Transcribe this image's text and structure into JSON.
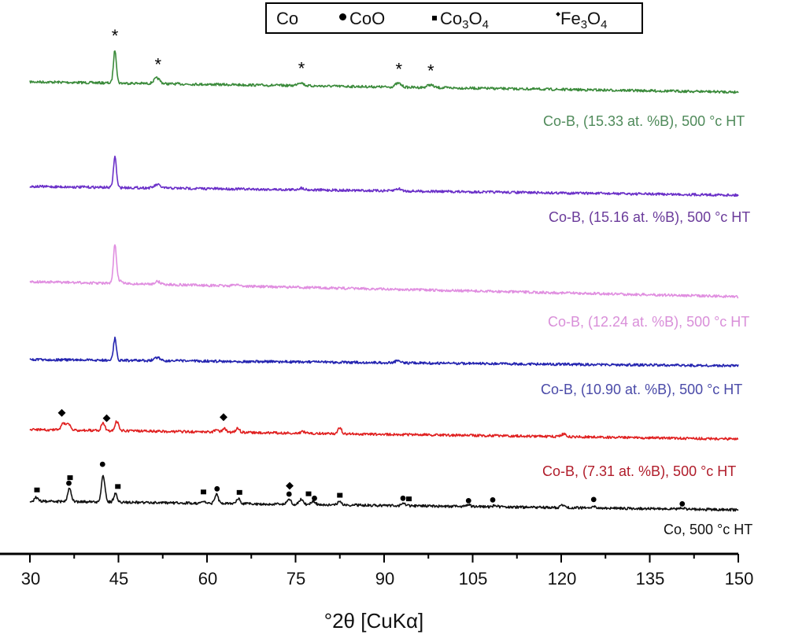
{
  "chart_data": {
    "type": "line",
    "title": "",
    "xlabel": "°2θ [CuKα]",
    "ylabel": "",
    "xlim": [
      30,
      150
    ],
    "xticks": [
      "30",
      "45",
      "60",
      "75",
      "90",
      "105",
      "120",
      "135",
      "150"
    ],
    "grid": false,
    "legend": {
      "placement": "top-center",
      "entries": [
        {
          "label": "Co",
          "sub": "",
          "label_tail": "",
          "sub2": "",
          "marker": "asterisk"
        },
        {
          "label": "CoO",
          "sub": "",
          "label_tail": "",
          "sub2": "",
          "marker": "circle"
        },
        {
          "label": "Co",
          "sub": "3",
          "label_tail": "O",
          "sub2": "4",
          "marker": "square"
        },
        {
          "label": "Fe",
          "sub": "3",
          "label_tail": "O",
          "sub2": "4",
          "marker": "diamond"
        }
      ]
    },
    "series": [
      {
        "name": "Co-B, (15.33 at. %B), 500 °c HT",
        "color": "#3a8a3a",
        "label_color": "#4f8a5a",
        "offset_rank": 5,
        "baseline": [
          0,
          0.13
        ],
        "peaks": [
          [
            44.4,
            6.0,
            0.25
          ],
          [
            51.5,
            1.0,
            0.5
          ],
          [
            75.8,
            0.6,
            0.5
          ],
          [
            92.4,
            0.7,
            0.5
          ],
          [
            97.8,
            0.5,
            0.5
          ]
        ],
        "markers": [
          {
            "x": 44.4,
            "symbol": "asterisk"
          },
          {
            "x": 51.7,
            "symbol": "asterisk"
          },
          {
            "x": 76.0,
            "symbol": "asterisk"
          },
          {
            "x": 92.5,
            "symbol": "asterisk"
          },
          {
            "x": 97.9,
            "symbol": "asterisk"
          }
        ]
      },
      {
        "name": "Co-B, (15.16 at. %B), 500 °c HT",
        "color": "#6a2fc8",
        "label_color": "#6a3a9a",
        "offset_rank": 4,
        "baseline": [
          0,
          0.11
        ],
        "peaks": [
          [
            44.4,
            5.6,
            0.25
          ],
          [
            51.6,
            0.6,
            0.5
          ],
          [
            76.0,
            0.3,
            0.5
          ],
          [
            92.4,
            0.4,
            0.5
          ]
        ],
        "markers": []
      },
      {
        "name": "Co-B, (12.24 at. %B), 500 °c HT",
        "color": "#e08ee0",
        "label_color": "#d98fd9",
        "offset_rank": 3,
        "baseline": [
          0,
          0.19
        ],
        "peaks": [
          [
            44.4,
            7.0,
            0.25
          ],
          [
            45.1,
            0.6,
            0.4
          ],
          [
            51.6,
            0.5,
            0.5
          ],
          [
            65.0,
            0.3,
            0.5
          ]
        ],
        "markers": []
      },
      {
        "name": "Co-B, (10.90 at. %B), 500 °c HT",
        "color": "#2424b0",
        "label_color": "#4a4aa8",
        "offset_rank": 2,
        "baseline": [
          0,
          0.08
        ],
        "peaks": [
          [
            44.4,
            4.0,
            0.25
          ],
          [
            51.6,
            0.6,
            0.5
          ],
          [
            92.4,
            0.4,
            0.5
          ]
        ],
        "markers": []
      },
      {
        "name": "Co-B, (7.31 at. %B), 500 °c HT",
        "color": "#e02020",
        "label_color": "#b01c2a",
        "offset_rank": 1,
        "baseline": [
          0,
          0.12
        ],
        "peaks": [
          [
            35.6,
            1.3,
            0.3
          ],
          [
            36.5,
            1.2,
            0.35
          ],
          [
            42.4,
            1.4,
            0.3
          ],
          [
            44.7,
            1.7,
            0.3
          ],
          [
            61.6,
            0.5,
            0.3
          ],
          [
            62.9,
            0.7,
            0.3
          ],
          [
            65.2,
            0.8,
            0.3
          ],
          [
            76.3,
            0.3,
            0.4
          ],
          [
            82.5,
            1.1,
            0.3
          ],
          [
            120.4,
            0.5,
            0.4
          ]
        ],
        "markers": [
          {
            "x": 35.4,
            "symbol": "diamond"
          },
          {
            "x": 43.0,
            "symbol": "diamond"
          },
          {
            "x": 62.8,
            "symbol": "diamond"
          }
        ]
      },
      {
        "name": "Co, 500 °c HT",
        "color": "#111111",
        "label_color": "#111111",
        "offset_rank": 0,
        "baseline": [
          0,
          0.11
        ],
        "peaks": [
          [
            31.1,
            0.7,
            0.3
          ],
          [
            36.7,
            2.4,
            0.3
          ],
          [
            42.4,
            4.8,
            0.3
          ],
          [
            44.5,
            1.5,
            0.3
          ],
          [
            59.4,
            0.3,
            0.3
          ],
          [
            61.6,
            1.6,
            0.3
          ],
          [
            65.3,
            0.9,
            0.3
          ],
          [
            73.9,
            1.0,
            0.3
          ],
          [
            75.9,
            0.9,
            0.35
          ],
          [
            78.0,
            0.6,
            0.35
          ],
          [
            82.5,
            0.7,
            0.3
          ],
          [
            93.3,
            0.5,
            0.3
          ],
          [
            104.3,
            0.3,
            0.35
          ],
          [
            108.9,
            0.3,
            0.35
          ],
          [
            120.4,
            0.5,
            0.4
          ],
          [
            125.6,
            0.2,
            0.4
          ],
          [
            140.5,
            0.2,
            0.4
          ]
        ],
        "markers": [
          {
            "x": 31.2,
            "symbol": "square",
            "level": 1.2
          },
          {
            "x": 36.8,
            "symbol": "square",
            "level": 3.5
          },
          {
            "x": 36.6,
            "symbol": "circle",
            "level": 2.5
          },
          {
            "x": 42.3,
            "symbol": "circle",
            "level": 6.0
          },
          {
            "x": 44.9,
            "symbol": "square",
            "level": 2.0
          },
          {
            "x": 59.4,
            "symbol": "square",
            "level": 1.2
          },
          {
            "x": 61.7,
            "symbol": "circle",
            "level": 1.8
          },
          {
            "x": 65.5,
            "symbol": "square",
            "level": 1.2
          },
          {
            "x": 73.9,
            "symbol": "circle",
            "level": 1.0
          },
          {
            "x": 74.0,
            "symbol": "diamond",
            "level": 2.5
          },
          {
            "x": 78.2,
            "symbol": "circle",
            "level": 0.3
          },
          {
            "x": 77.2,
            "symbol": "square",
            "level": 1.1
          },
          {
            "x": 82.5,
            "symbol": "square",
            "level": 0.9
          },
          {
            "x": 93.2,
            "symbol": "circle",
            "level": 0.5
          },
          {
            "x": 94.2,
            "symbol": "square",
            "level": 0.4
          },
          {
            "x": 104.3,
            "symbol": "circle",
            "level": 0.2
          },
          {
            "x": 108.4,
            "symbol": "circle",
            "level": 0.4
          },
          {
            "x": 125.5,
            "symbol": "circle",
            "level": 0.7
          },
          {
            "x": 140.5,
            "symbol": "circle",
            "level": 0.1
          }
        ]
      }
    ]
  }
}
